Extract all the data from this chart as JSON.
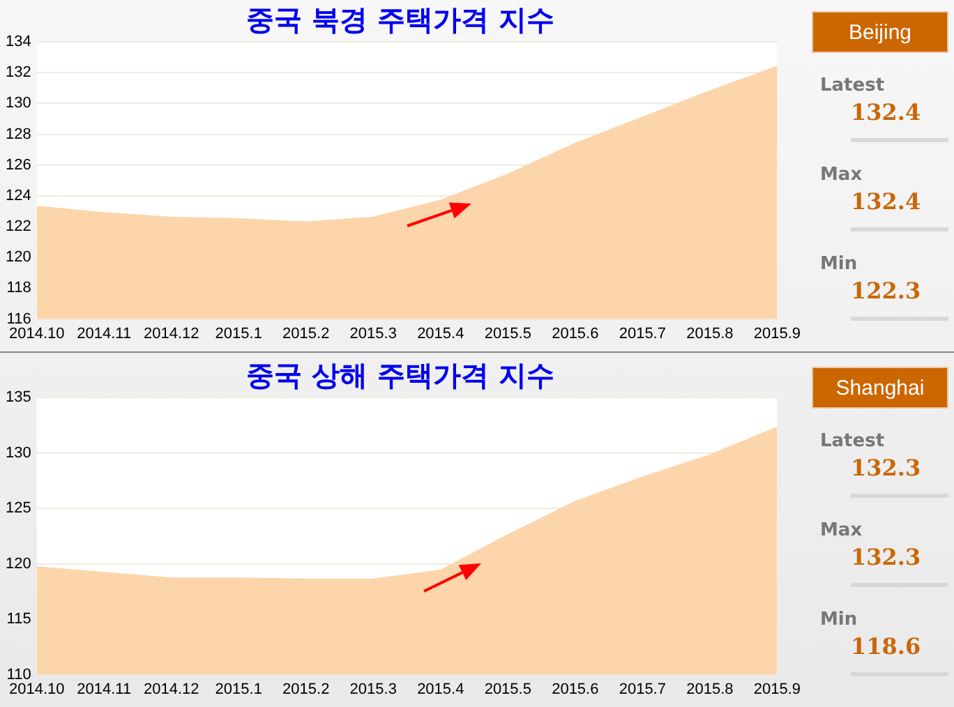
{
  "chart_data": [
    {
      "type": "area",
      "title": "중국 북경 주택가격 지수",
      "categories": [
        "2014.10",
        "2014.11",
        "2014.12",
        "2015.1",
        "2015.2",
        "2015.3",
        "2015.4",
        "2015.5",
        "2015.6",
        "2015.7",
        "2015.8",
        "2015.9"
      ],
      "values": [
        123.3,
        122.9,
        122.6,
        122.5,
        122.3,
        122.6,
        123.7,
        125.4,
        127.4,
        129.1,
        130.8,
        132.4
      ],
      "color": "#fdd5ab",
      "ylim": [
        116,
        134
      ],
      "yticks": [
        116,
        118,
        120,
        122,
        124,
        126,
        128,
        130,
        132,
        134
      ],
      "grid": "y",
      "marker": "none",
      "legend": false
    },
    {
      "type": "other",
      "title": "Beijing",
      "annotations": [
        "Latest",
        "132.4",
        "Max",
        "132.4",
        "Min",
        "122.3"
      ]
    },
    {
      "type": "area",
      "title": "중국 상해 주택가격 지수",
      "categories": [
        "2014.10",
        "2014.11",
        "2014.12",
        "2015.1",
        "2015.2",
        "2015.3",
        "2015.4",
        "2015.5",
        "2015.6",
        "2015.7",
        "2015.8",
        "2015.9"
      ],
      "values": [
        119.7,
        119.2,
        118.7,
        118.7,
        118.6,
        118.6,
        119.4,
        122.6,
        125.6,
        127.8,
        129.8,
        132.3
      ],
      "color": "#fdd5ab",
      "ylim": [
        110,
        135
      ],
      "yticks": [
        110,
        115,
        120,
        125,
        130,
        135
      ],
      "grid": "y",
      "marker": "none",
      "legend": false
    },
    {
      "type": "other",
      "title": "Shanghai",
      "annotations": [
        "Latest",
        "132.3",
        "Max",
        "132.3",
        "Min",
        "118.6"
      ]
    }
  ]
}
